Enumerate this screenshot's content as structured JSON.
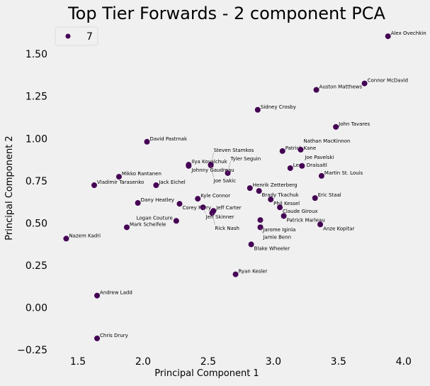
{
  "chart_data": {
    "type": "scatter",
    "title": "Top Tier Forwards - 2 component PCA",
    "xlabel": "Principal Component 1",
    "ylabel": "Principal Component 2",
    "xlim": [
      1.326,
      4.11
    ],
    "ylim": [
      -0.3,
      1.66
    ],
    "xticks": [
      1.5,
      2.0,
      2.5,
      3.0,
      3.5,
      4.0
    ],
    "xtick_labels": [
      "1.5",
      "2.0",
      "2.5",
      "3.0",
      "3.5",
      "4.0"
    ],
    "yticks": [
      -0.25,
      0.0,
      0.25,
      0.5,
      0.75,
      1.0,
      1.25,
      1.5
    ],
    "ytick_labels": [
      "−0.25",
      "0.00",
      "0.25",
      "0.50",
      "0.75",
      "1.00",
      "1.25",
      "1.50"
    ],
    "grid": false,
    "legend": {
      "placement": "top-left",
      "entries": [
        {
          "label": "7",
          "color": "#440154"
        }
      ]
    },
    "point_color": "#440154",
    "points": [
      {
        "label": "Alex Ovechkin",
        "x": 3.88,
        "y": 1.605
      },
      {
        "label": "Connor McDavid",
        "x": 3.7,
        "y": 1.326
      },
      {
        "label": "Auston Matthews",
        "x": 3.33,
        "y": 1.288
      },
      {
        "label": "Sidney Crosby",
        "x": 2.88,
        "y": 1.17
      },
      {
        "label": "John Tavares",
        "x": 3.48,
        "y": 1.069
      },
      {
        "label": "David Pastrnak",
        "x": 2.03,
        "y": 0.981
      },
      {
        "label": "Patrick Kane",
        "x": 3.07,
        "y": 0.926
      },
      {
        "label": "Nathan MacKinnon",
        "x": 3.21,
        "y": 0.934
      },
      {
        "label": "Ilya Kovalchuk",
        "x": 2.35,
        "y": 0.845
      },
      {
        "label": "Johnny Gaudreau",
        "x": 2.35,
        "y": 0.838
      },
      {
        "label": "Steven Stamkos",
        "x": 2.52,
        "y": 0.846
      },
      {
        "label": "Joe Sakic",
        "x": 2.52,
        "y": 0.842
      },
      {
        "label": "Tyler Seguin",
        "x": 2.65,
        "y": 0.796
      },
      {
        "label": "Leon Draisaitl",
        "x": 3.13,
        "y": 0.825
      },
      {
        "label": "Joe Pavelski",
        "x": 3.22,
        "y": 0.838
      },
      {
        "label": "Martin St. Louis",
        "x": 3.37,
        "y": 0.779
      },
      {
        "label": "Mikko Rantanen",
        "x": 1.815,
        "y": 0.774
      },
      {
        "label": "Vladimir Tarasenko",
        "x": 1.625,
        "y": 0.724
      },
      {
        "label": "Jack Eichel",
        "x": 2.1,
        "y": 0.724
      },
      {
        "label": "Henrik Zetterberg",
        "x": 2.82,
        "y": 0.707
      },
      {
        "label": "Brady Tkachuk",
        "x": 2.89,
        "y": 0.69
      },
      {
        "label": "Kyle Connor",
        "x": 2.42,
        "y": 0.644
      },
      {
        "label": "Phil Kessel",
        "x": 2.98,
        "y": 0.64
      },
      {
        "label": "Eric Staal",
        "x": 3.32,
        "y": 0.648
      },
      {
        "label": "Dany Heatley",
        "x": 1.96,
        "y": 0.619
      },
      {
        "label": "Corey Perry",
        "x": 2.28,
        "y": 0.614
      },
      {
        "label": "Jeff Skinner",
        "x": 2.46,
        "y": 0.593
      },
      {
        "label": "Claude Giroux",
        "x": 3.05,
        "y": 0.593
      },
      {
        "label": "Jeff Carter",
        "x": 2.54,
        "y": 0.572
      },
      {
        "label": "Rick Nash",
        "x": 2.53,
        "y": 0.56
      },
      {
        "label": "Patrick Marleau",
        "x": 3.08,
        "y": 0.542
      },
      {
        "label": "Jarome Iginla",
        "x": 2.9,
        "y": 0.518
      },
      {
        "label": "Logan Couture",
        "x": 2.255,
        "y": 0.513
      },
      {
        "label": "Anze Kopitar",
        "x": 3.36,
        "y": 0.492
      },
      {
        "label": "Mark Scheifele",
        "x": 1.875,
        "y": 0.475
      },
      {
        "label": "Jamie Benn",
        "x": 2.9,
        "y": 0.475
      },
      {
        "label": "Nazem Kadri",
        "x": 1.41,
        "y": 0.408
      },
      {
        "label": "Blake Wheeler",
        "x": 2.83,
        "y": 0.374
      },
      {
        "label": "Ryan Kesler",
        "x": 2.71,
        "y": 0.197
      },
      {
        "label": "Andrew Ladd",
        "x": 1.647,
        "y": 0.071
      },
      {
        "label": "Chris Drury",
        "x": 1.647,
        "y": -0.182
      }
    ]
  }
}
